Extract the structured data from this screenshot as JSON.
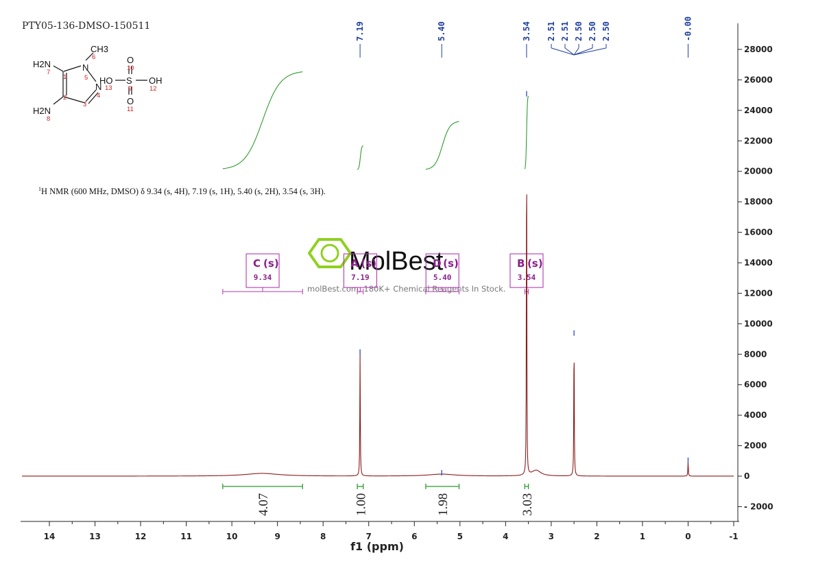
{
  "sample_id": "PTY05-136-DMSO-150511",
  "nmr_description": "H NMR (600 MHz, DMSO) δ 9.34 (s, 4H), 7.19 (s, 1H), 5.40 (s, 2H), 3.54 (s, 3H).",
  "nmr_description_sup": "1",
  "watermark": {
    "brand": "MolBest",
    "tagline": "molBest.com, 180K+ Chemical Reagents In Stock."
  },
  "molecule": {
    "atoms": [
      {
        "label": "H2N",
        "num": "7"
      },
      {
        "label": "CH3",
        "num": "6"
      },
      {
        "label": "N",
        "num": "5"
      },
      {
        "label": "N",
        "num": "13"
      },
      {
        "label": "H2N",
        "num": "8"
      },
      {
        "label": "HO",
        "num": ""
      },
      {
        "label": "S",
        "num": "9"
      },
      {
        "label": "OH",
        "num": "12"
      },
      {
        "label": "O",
        "num": "10"
      },
      {
        "label": "O",
        "num": "11"
      }
    ],
    "ring_nums": [
      "1",
      "2",
      "3",
      "4"
    ]
  },
  "chart_data": {
    "type": "line",
    "xlabel": "f1 (ppm)",
    "xlim": [
      14.6,
      -1
    ],
    "ylim": [
      -2900,
      29500
    ],
    "x_ticks": [
      14,
      13,
      12,
      11,
      10,
      9,
      8,
      7,
      6,
      5,
      4,
      3,
      2,
      1,
      0,
      -1
    ],
    "y_ticks": [
      -2000,
      0,
      2000,
      4000,
      6000,
      8000,
      10000,
      12000,
      14000,
      16000,
      18000,
      20000,
      22000,
      24000,
      26000,
      28000
    ],
    "peak_labels": [
      "7.19",
      "5.40",
      "3.54",
      "2.51",
      "2.51",
      "2.50",
      "2.50",
      "2.50",
      "-0.00"
    ],
    "peaks": [
      {
        "ppm": 9.34,
        "height": 180,
        "width": 0.45
      },
      {
        "ppm": 7.19,
        "height": 8050,
        "width": 0.006
      },
      {
        "ppm": 5.4,
        "height": 130,
        "width": 0.35
      },
      {
        "ppm": 3.54,
        "height": 25000,
        "width": 0.005
      },
      {
        "ppm": 3.33,
        "height": 380,
        "width": 0.12
      },
      {
        "ppm": 2.5,
        "height": 9300,
        "width": 0.006
      },
      {
        "ppm": 0.0,
        "height": 950,
        "width": 0.006
      }
    ],
    "multiplets": [
      {
        "letter": "C",
        "mult": "(s)",
        "shift": "9.34",
        "range": [
          10.2,
          8.45
        ]
      },
      {
        "letter": "A",
        "mult": "(s)",
        "shift": "7.19",
        "range": [
          7.25,
          7.12
        ]
      },
      {
        "letter": "D",
        "mult": "(s)",
        "shift": "5.40",
        "range": [
          5.75,
          5.02
        ]
      },
      {
        "letter": "B",
        "mult": "(s)",
        "shift": "3.54",
        "range": [
          3.58,
          3.5
        ]
      }
    ],
    "integrals": [
      {
        "value": "4.07",
        "range": [
          10.2,
          8.45
        ],
        "curve_bottom": 20100,
        "curve_top": 26600
      },
      {
        "value": "1.00",
        "range": [
          7.25,
          7.12
        ],
        "curve_bottom": 20100,
        "curve_top": 21700
      },
      {
        "value": "1.98",
        "range": [
          5.75,
          5.02
        ],
        "curve_bottom": 20100,
        "curve_top": 23300
      },
      {
        "value": "3.03",
        "range": [
          3.58,
          3.5
        ],
        "curve_bottom": 20100,
        "curve_top": 25000
      }
    ],
    "colors": {
      "spectrum": "#8b1a1a",
      "integral": "#2e9b2e",
      "multiplet": "#b03ab0",
      "peak_label": "#1f3e9e",
      "watermark_logo": "#8fd11f"
    }
  }
}
